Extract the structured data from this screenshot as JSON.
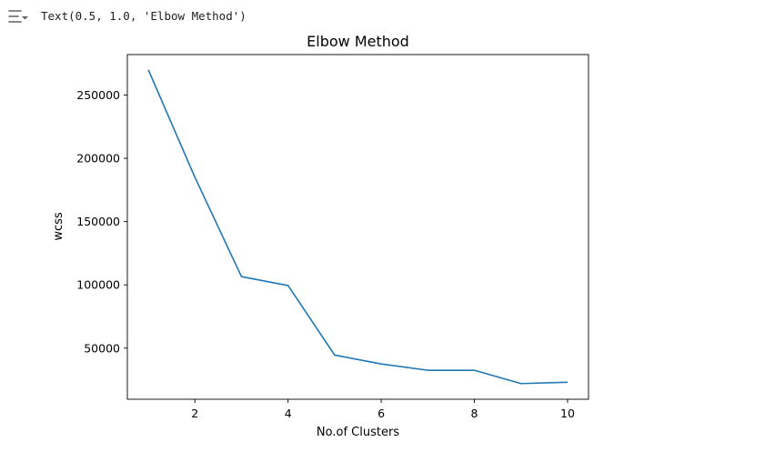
{
  "output": {
    "text_repr": "Text(0.5, 1.0, 'Elbow Method')",
    "toggle_icon": "output-collapse-icon"
  },
  "colors": {
    "line": "#1f77b4",
    "axes": "#000000",
    "text": "#000000",
    "toggle": "#616161"
  },
  "chart_data": {
    "type": "line",
    "title": "Elbow Method",
    "xlabel": "No.of Clusters",
    "ylabel": "wcss",
    "x": [
      1,
      2,
      3,
      4,
      5,
      6,
      7,
      8,
      9,
      10
    ],
    "series": [
      {
        "values": [
          270000,
          185000,
          106500,
          99500,
          44500,
          37500,
          32500,
          32500,
          22000,
          23000
        ]
      }
    ],
    "xlim": [
      0.55,
      10.45
    ],
    "ylim": [
      9600,
      282000
    ],
    "xticks": [
      2,
      4,
      6,
      8,
      10
    ],
    "yticks": [
      50000,
      100000,
      150000,
      200000,
      250000
    ],
    "grid": false,
    "legend": "none"
  }
}
